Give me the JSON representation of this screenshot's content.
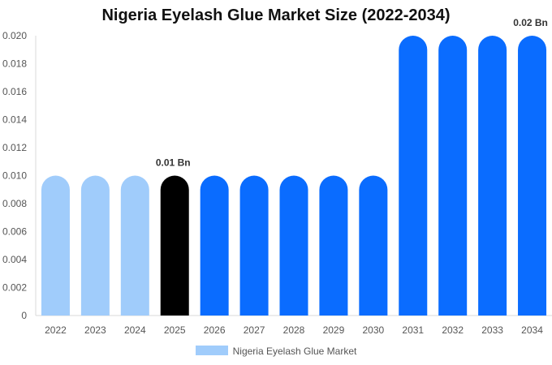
{
  "chart_data": {
    "type": "bar",
    "title": "Nigeria Eyelash Glue Market Size (2022-2034)",
    "categories": [
      "2022",
      "2023",
      "2024",
      "2025",
      "2026",
      "2027",
      "2028",
      "2029",
      "2030",
      "2031",
      "2032",
      "2033",
      "2034"
    ],
    "series": [
      {
        "name": "Nigeria Eyelash Glue Market",
        "values": [
          0.01,
          0.01,
          0.01,
          0.01,
          0.01,
          0.01,
          0.01,
          0.01,
          0.01,
          0.02,
          0.02,
          0.02,
          0.02
        ]
      }
    ],
    "ylim": [
      0,
      0.02
    ],
    "yticks": [
      "0",
      "0.002",
      "0.004",
      "0.006",
      "0.008",
      "0.010",
      "0.012",
      "0.014",
      "0.016",
      "0.018",
      "0.020"
    ],
    "data_labels": [
      {
        "category": "2025",
        "text": "0.01 Bn"
      },
      {
        "category": "2034",
        "text": "0.02 Bn"
      }
    ],
    "bar_colors": {
      "historical": "#a0ccfb",
      "base_year": "#000000",
      "forecast": "#0a6cff"
    },
    "historical_categories": [
      "2022",
      "2023",
      "2024"
    ],
    "base_year": "2025",
    "legend_color": "#a0ccfb",
    "grid": false,
    "legend_position": "bottom"
  }
}
